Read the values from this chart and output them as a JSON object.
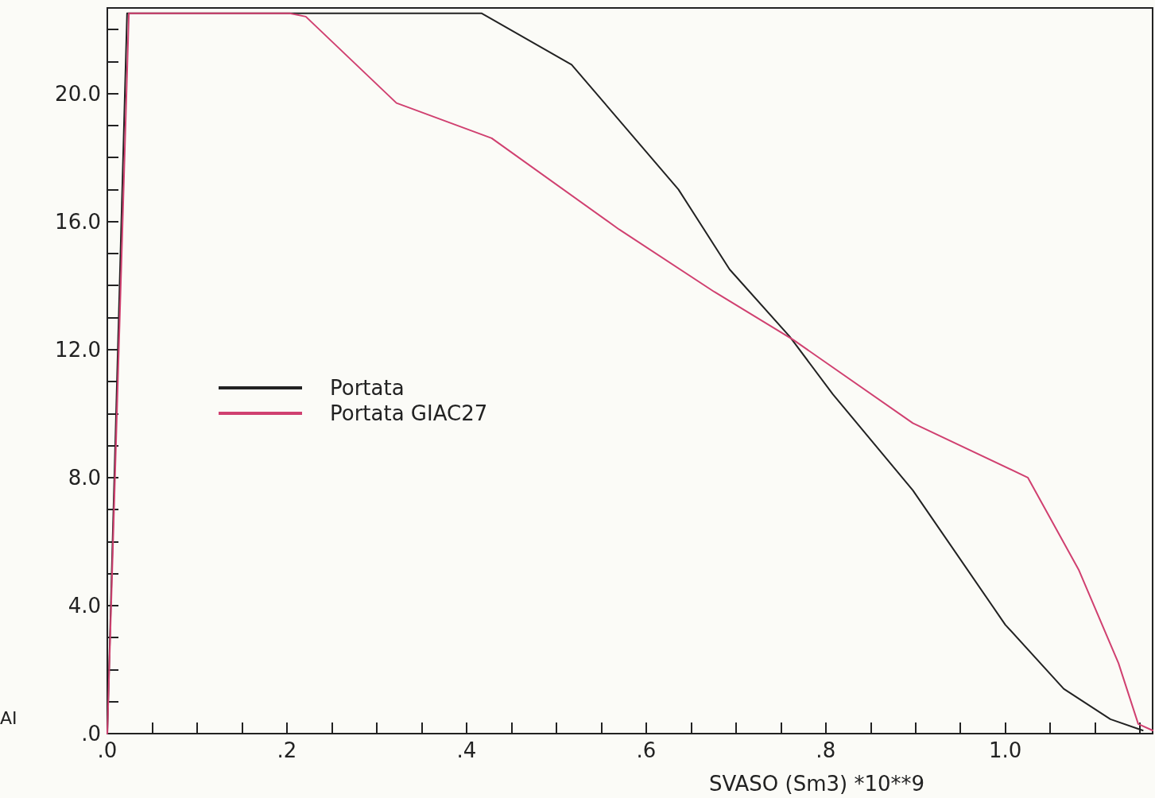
{
  "chart_data": {
    "type": "line",
    "xlabel": "SVASO (Sm3) *10**9",
    "ylabel": "AI",
    "xlim": [
      0,
      1.164
    ],
    "ylim": [
      0,
      22.67
    ],
    "xticks": [
      {
        "value": 0,
        "label": ".0"
      },
      {
        "value": 0.05,
        "label": null
      },
      {
        "value": 0.1,
        "label": null
      },
      {
        "value": 0.15,
        "label": null
      },
      {
        "value": 0.2,
        "label": ".2"
      },
      {
        "value": 0.25,
        "label": null
      },
      {
        "value": 0.3,
        "label": null
      },
      {
        "value": 0.35,
        "label": null
      },
      {
        "value": 0.4,
        "label": ".4"
      },
      {
        "value": 0.45,
        "label": null
      },
      {
        "value": 0.5,
        "label": null
      },
      {
        "value": 0.55,
        "label": null
      },
      {
        "value": 0.6,
        "label": ".6"
      },
      {
        "value": 0.65,
        "label": null
      },
      {
        "value": 0.7,
        "label": null
      },
      {
        "value": 0.75,
        "label": null
      },
      {
        "value": 0.8,
        "label": ".8"
      },
      {
        "value": 0.85,
        "label": null
      },
      {
        "value": 0.9,
        "label": null
      },
      {
        "value": 0.95,
        "label": null
      },
      {
        "value": 1.0,
        "label": "1.0"
      },
      {
        "value": 1.05,
        "label": null
      },
      {
        "value": 1.1,
        "label": null
      },
      {
        "value": 1.15,
        "label": null
      }
    ],
    "yticks": [
      {
        "value": 0,
        "label": ".0"
      },
      {
        "value": 1,
        "label": null
      },
      {
        "value": 2,
        "label": null
      },
      {
        "value": 3,
        "label": null
      },
      {
        "value": 4,
        "label": "4.0"
      },
      {
        "value": 5,
        "label": null
      },
      {
        "value": 6,
        "label": null
      },
      {
        "value": 7,
        "label": null
      },
      {
        "value": 8,
        "label": "8.0"
      },
      {
        "value": 9,
        "label": null
      },
      {
        "value": 10,
        "label": null
      },
      {
        "value": 11,
        "label": null
      },
      {
        "value": 12,
        "label": "12.0"
      },
      {
        "value": 13,
        "label": null
      },
      {
        "value": 14,
        "label": null
      },
      {
        "value": 15,
        "label": null
      },
      {
        "value": 16,
        "label": "16.0"
      },
      {
        "value": 17,
        "label": null
      },
      {
        "value": 18,
        "label": null
      },
      {
        "value": 19,
        "label": null
      },
      {
        "value": 20,
        "label": "20.0"
      },
      {
        "value": 21,
        "label": null
      },
      {
        "value": 22,
        "label": null
      }
    ],
    "grid": false,
    "legend": "center left",
    "marker": "none",
    "line_style": "solid",
    "series": [
      {
        "name": "Portata",
        "color": "#222222",
        "x": [
          0,
          0.022,
          0.417,
          0.517,
          0.636,
          0.693,
          0.76,
          0.808,
          0.897,
          1.0,
          1.065,
          1.117,
          1.153
        ],
        "values": [
          0,
          22.5,
          22.5,
          20.9,
          17.0,
          14.5,
          12.4,
          10.6,
          7.6,
          3.4,
          1.4,
          0.45,
          0.1
        ]
      },
      {
        "name": "Portata GIAC27",
        "color": "#d04070",
        "x": [
          0,
          0.024,
          0.203,
          0.221,
          0.322,
          0.428,
          0.57,
          0.676,
          0.764,
          0.897,
          1.025,
          1.082,
          1.126,
          1.148,
          1.164
        ],
        "values": [
          0,
          22.5,
          22.5,
          22.4,
          19.7,
          18.6,
          15.75,
          13.8,
          12.3,
          9.7,
          8.0,
          5.1,
          2.2,
          0.3,
          0.1
        ]
      }
    ]
  }
}
